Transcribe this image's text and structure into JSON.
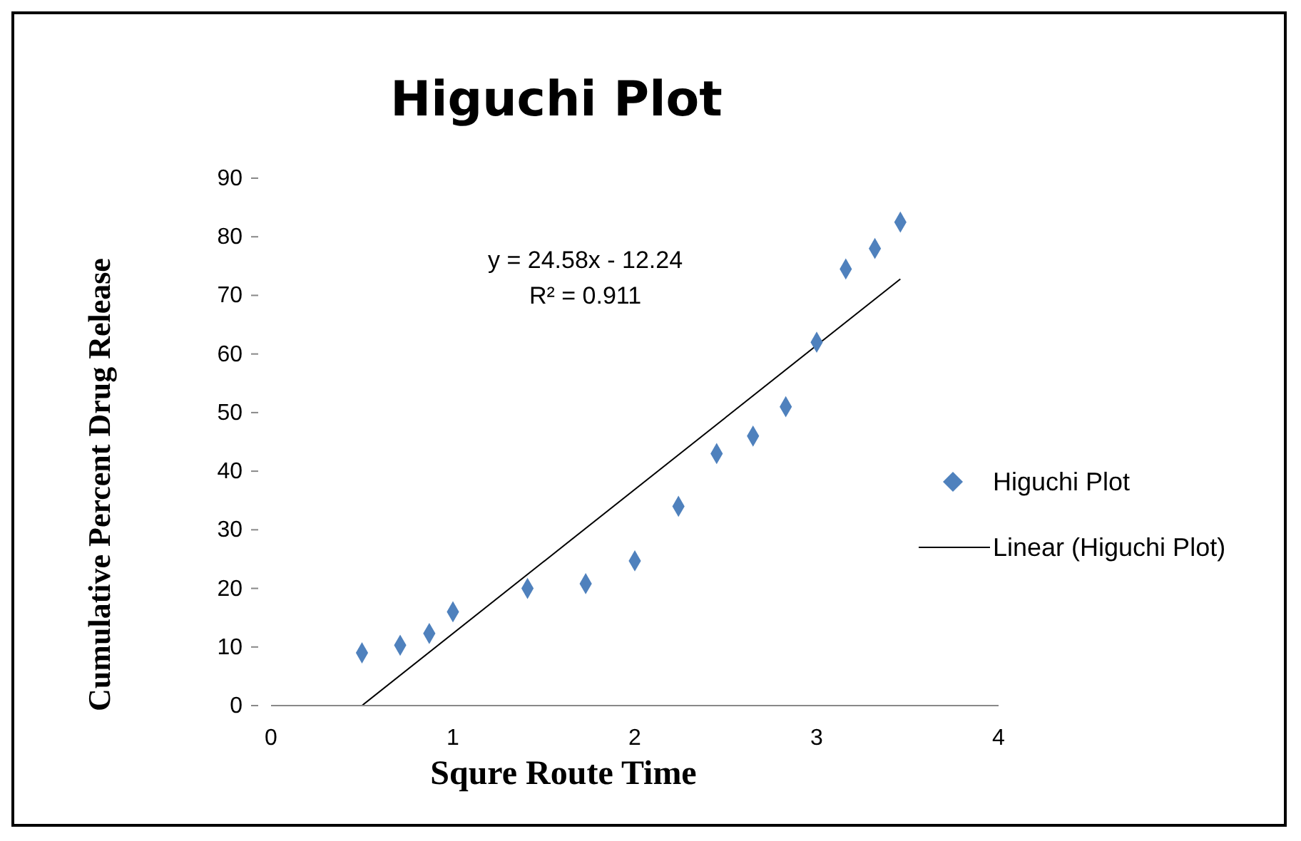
{
  "chart_data": {
    "type": "scatter",
    "title": "Higuchi Plot",
    "xlabel": "Squre Route Time",
    "ylabel": "Cumulative Percent Drug Release",
    "annotations": [
      "y = 24.58x - 12.24",
      "R² = 0.911"
    ],
    "series": [
      {
        "name": "Higuchi Plot",
        "color": "#4f81bd",
        "marker": "diamond",
        "x": [
          0.5,
          0.71,
          0.87,
          1,
          1.41,
          1.73,
          2,
          2.24,
          2.45,
          2.65,
          2.83,
          3,
          3.16,
          3.32,
          3.46
        ],
        "values": [
          9,
          10.3,
          12.3,
          16,
          20,
          20.8,
          24.7,
          34,
          43,
          46,
          51,
          62,
          74.5,
          78,
          82.5
        ]
      },
      {
        "name": "Linear (Higuchi Plot)",
        "type": "line",
        "color": "#000000",
        "marker": "none",
        "x": [
          0.5,
          3.46
        ],
        "values": [
          0,
          72.8
        ]
      }
    ],
    "xlim": [
      0,
      4
    ],
    "xticks": [
      0,
      1,
      2,
      3,
      4
    ],
    "ylim": [
      0,
      90
    ],
    "yticks": [
      0,
      10,
      20,
      30,
      40,
      50,
      60,
      70,
      80,
      90
    ],
    "grid": false,
    "legend": "right"
  }
}
